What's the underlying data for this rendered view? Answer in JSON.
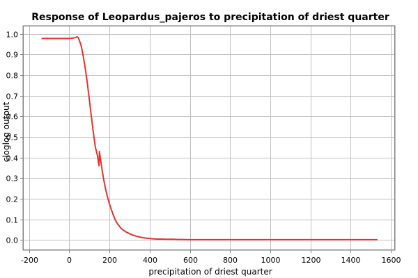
{
  "chart_data": {
    "type": "line",
    "title": "Response of Leopardus_pajeros to precipitation of driest quarter",
    "xlabel": "precipitation of driest quarter",
    "ylabel": "cloglog output",
    "xlim": [
      -230,
      1620
    ],
    "ylim": [
      -0.05,
      1.04
    ],
    "x_ticks": [
      -200,
      0,
      200,
      400,
      600,
      800,
      1000,
      1200,
      1400,
      1600
    ],
    "y_ticks": [
      0.0,
      0.1,
      0.2,
      0.3,
      0.4,
      0.5,
      0.6,
      0.7,
      0.8,
      0.9,
      1.0
    ],
    "x_tick_labels": [
      "-200",
      "0",
      "200",
      "400",
      "600",
      "800",
      "1000",
      "1200",
      "1400",
      "1600"
    ],
    "y_tick_labels": [
      "0.0",
      "0.1",
      "0.2",
      "0.3",
      "0.4",
      "0.5",
      "0.6",
      "0.7",
      "0.8",
      "0.9",
      "1.0"
    ],
    "grid": true,
    "series": [
      {
        "color": "#e8302d",
        "x": [
          -135,
          -100,
          -50,
          0,
          20,
          30,
          40,
          45,
          50,
          60,
          70,
          80,
          90,
          100,
          110,
          120,
          130,
          140,
          148,
          150,
          160,
          170,
          180,
          190,
          200,
          210,
          220,
          230,
          240,
          250,
          260,
          280,
          300,
          320,
          340,
          360,
          380,
          400,
          420,
          440,
          460,
          480,
          500,
          520,
          540,
          560,
          600,
          700,
          800,
          900,
          1000,
          1100,
          1200,
          1300,
          1400,
          1500,
          1530
        ],
        "y": [
          0.978,
          0.978,
          0.978,
          0.978,
          0.98,
          0.983,
          0.986,
          0.982,
          0.97,
          0.94,
          0.89,
          0.83,
          0.76,
          0.68,
          0.6,
          0.52,
          0.45,
          0.41,
          0.36,
          0.43,
          0.36,
          0.3,
          0.25,
          0.21,
          0.175,
          0.145,
          0.118,
          0.095,
          0.078,
          0.065,
          0.054,
          0.04,
          0.03,
          0.022,
          0.016,
          0.012,
          0.009,
          0.007,
          0.005,
          0.004,
          0.004,
          0.003,
          0.003,
          0.003,
          0.002,
          0.002,
          0.001,
          0.001,
          0.001,
          0.001,
          0.001,
          0.001,
          0.001,
          0.001,
          0.001,
          0.001,
          0.001
        ]
      }
    ]
  }
}
